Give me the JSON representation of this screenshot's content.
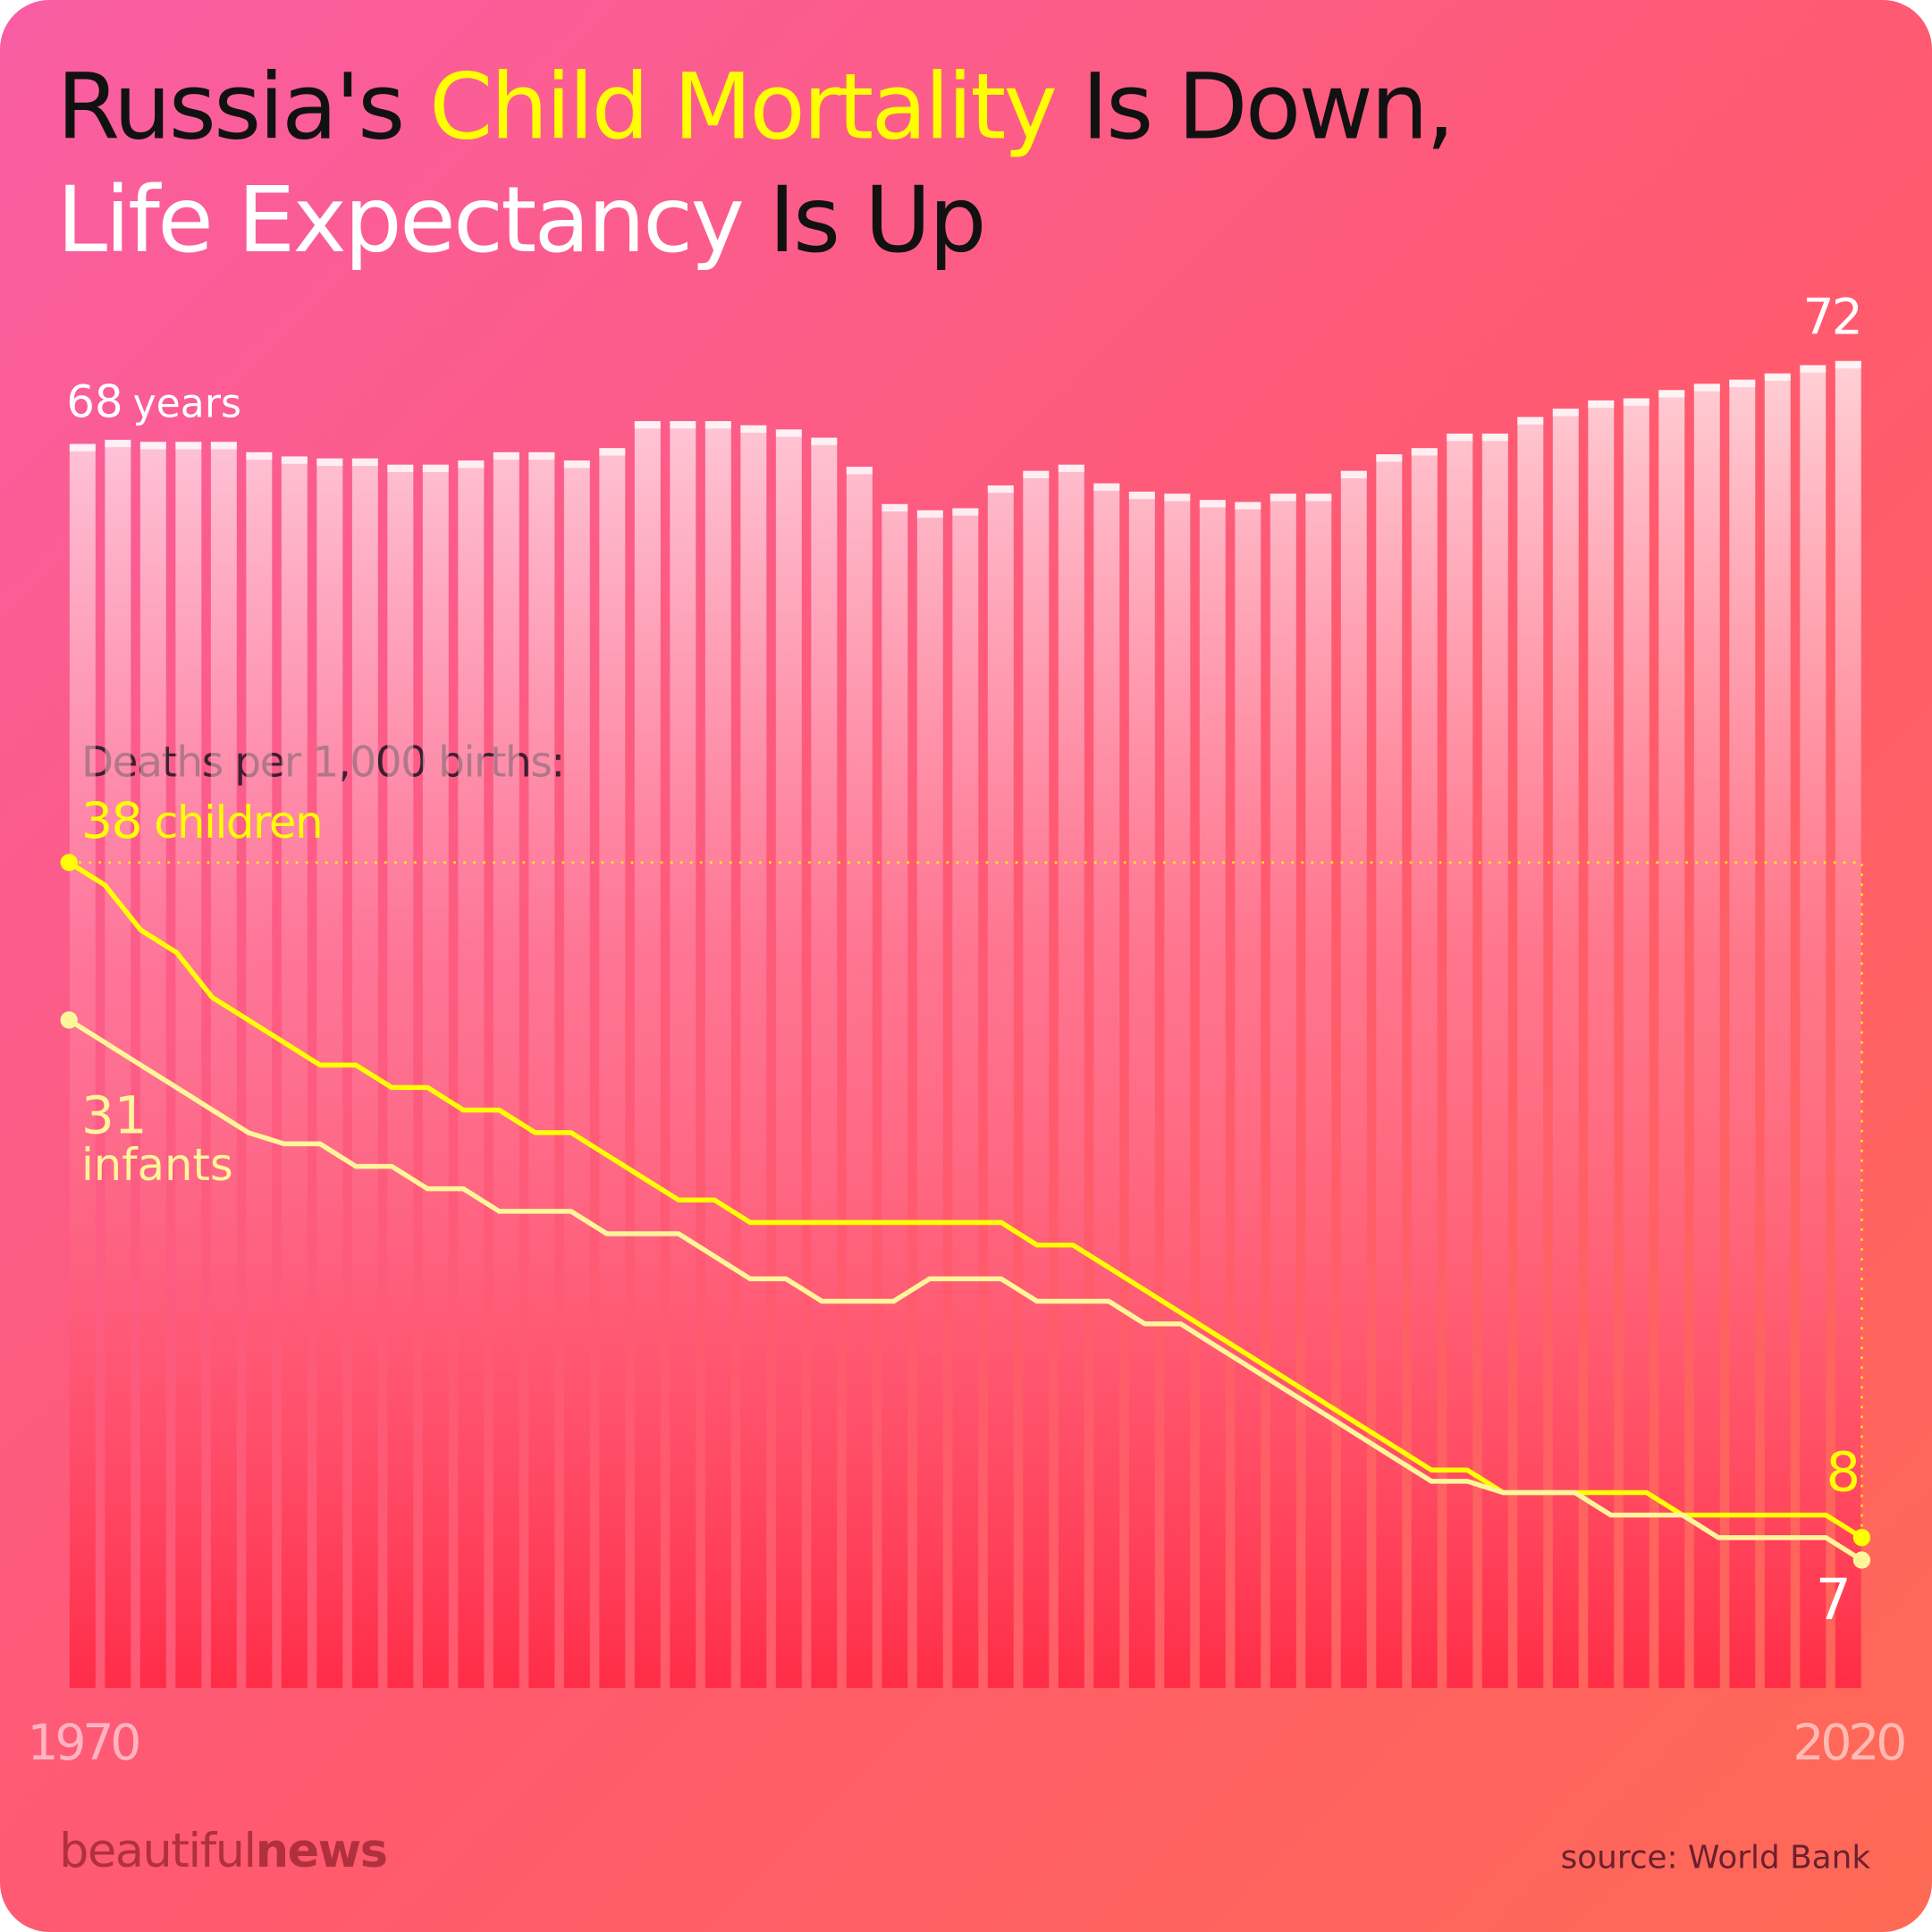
{
  "title_parts": [
    "Russia's ",
    "Child Mortality",
    " Is Down,",
    "Life Expectancy",
    " Is Up"
  ],
  "chart_data": [
    {
      "type": "bar",
      "color": "#ffffff",
      "value_unit": "years",
      "categories": [
        "1970",
        null,
        null,
        null,
        null,
        null,
        null,
        null,
        null,
        null,
        null,
        null,
        null,
        null,
        null,
        null,
        null,
        null,
        null,
        null,
        null,
        null,
        null,
        null,
        null,
        null,
        null,
        null,
        null,
        null,
        null,
        null,
        null,
        null,
        null,
        null,
        null,
        null,
        null,
        null,
        null,
        null,
        null,
        null,
        null,
        null,
        null,
        null,
        null,
        null,
        "2020"
      ],
      "values": [
        68,
        68.2,
        68.1,
        68.1,
        68.1,
        67.6,
        67.4,
        67.3,
        67.3,
        67,
        67,
        67.2,
        67.6,
        67.6,
        67.2,
        67.8,
        69.1,
        69.1,
        69.1,
        68.9,
        68.7,
        68.3,
        66.9,
        65.1,
        64.8,
        64.9,
        66,
        66.7,
        67,
        66.1,
        65.7,
        65.6,
        65.3,
        65.2,
        65.6,
        65.6,
        66.7,
        67.5,
        67.8,
        68.5,
        68.5,
        69.3,
        69.7,
        70.1,
        70.2,
        70.6,
        70.9,
        71.1,
        71.4,
        71.8,
        72
      ],
      "ylim": [
        8,
        72
      ]
    },
    {
      "type": "line",
      "subtitle": "Deaths per 1,000 births:",
      "ylim": [
        0,
        38
      ],
      "series": [
        {
          "name": "children",
          "color": "#ffff00",
          "values": [
            38,
            37,
            35,
            34,
            32,
            31,
            30,
            29,
            29,
            28,
            28,
            27,
            27,
            26,
            26,
            25,
            24,
            23,
            23,
            22,
            22,
            22,
            22,
            22,
            22,
            22,
            22,
            21,
            21,
            20,
            19,
            18,
            17,
            16,
            15,
            14,
            13,
            12,
            11,
            11,
            10,
            10,
            10,
            10,
            10,
            9,
            9,
            9,
            9,
            9,
            8
          ]
        },
        {
          "name": "infants",
          "color": "#fff59a",
          "values": [
            31,
            30,
            29,
            28,
            27,
            26,
            25.5,
            25.5,
            24.5,
            24.5,
            23.5,
            23.5,
            22.5,
            22.5,
            22.5,
            21.5,
            21.5,
            21.5,
            20.5,
            19.5,
            19.5,
            18.5,
            18.5,
            18.5,
            19.5,
            19.5,
            19.5,
            18.5,
            18.5,
            18.5,
            17.5,
            17.5,
            16.5,
            15.5,
            14.5,
            13.5,
            12.5,
            11.5,
            10.5,
            10.5,
            10,
            10,
            10,
            9,
            9,
            9,
            8,
            8,
            8,
            8,
            7
          ]
        }
      ]
    }
  ],
  "brand": [
    "beautiful",
    "news"
  ],
  "source": "source: World Bank"
}
